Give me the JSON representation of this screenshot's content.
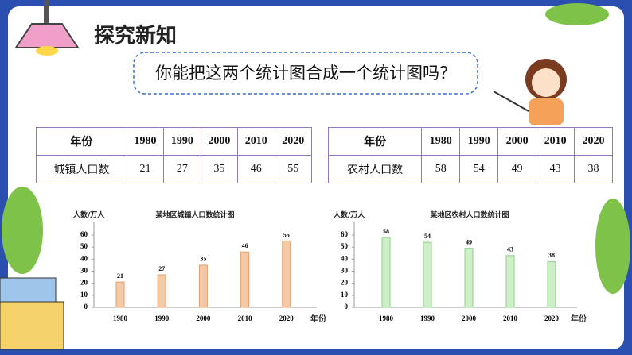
{
  "title": "探究新知",
  "question": "你能把这两个统计图合成一个统计图吗？",
  "tables": [
    {
      "header": [
        "年份",
        "1980",
        "1990",
        "2000",
        "2010",
        "2020"
      ],
      "rows": [
        [
          "城镇人口数",
          "21",
          "27",
          "35",
          "46",
          "55"
        ]
      ]
    },
    {
      "header": [
        "年份",
        "1980",
        "1990",
        "2000",
        "2010",
        "2020"
      ],
      "rows": [
        [
          "农村人口数",
          "58",
          "54",
          "49",
          "43",
          "38"
        ]
      ]
    }
  ],
  "chart_data": [
    {
      "type": "bar",
      "title": "某地区城镇人口数统计图",
      "y_label": "人数/万人",
      "x_label": "年份",
      "categories": [
        "1980",
        "1990",
        "2000",
        "2010",
        "2020"
      ],
      "values": [
        21,
        27,
        35,
        46,
        55
      ],
      "color": "#f5c9a6",
      "ylim": [
        0,
        60
      ],
      "yticks": [
        0,
        10,
        20,
        30,
        40,
        50,
        60
      ]
    },
    {
      "type": "bar",
      "title": "某地区农村人口数统计图",
      "y_label": "人数/万人",
      "x_label": "年份",
      "categories": [
        "1980",
        "1990",
        "2000",
        "2010",
        "2020"
      ],
      "values": [
        58,
        54,
        49,
        43,
        38
      ],
      "color": "#cdeec6",
      "ylim": [
        0,
        60
      ],
      "yticks": [
        0,
        10,
        20,
        30,
        40,
        50,
        60
      ]
    }
  ]
}
